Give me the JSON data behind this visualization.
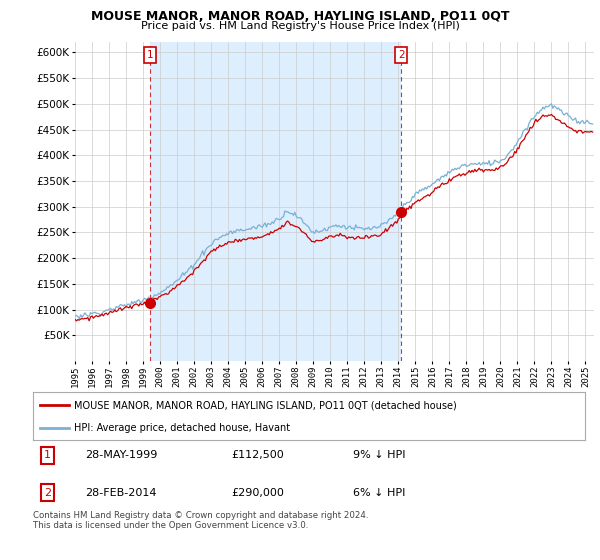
{
  "title": "MOUSE MANOR, MANOR ROAD, HAYLING ISLAND, PO11 0QT",
  "subtitle": "Price paid vs. HM Land Registry's House Price Index (HPI)",
  "legend_label_red": "MOUSE MANOR, MANOR ROAD, HAYLING ISLAND, PO11 0QT (detached house)",
  "legend_label_blue": "HPI: Average price, detached house, Havant",
  "sale1_date": "28-MAY-1999",
  "sale1_price": "£112,500",
  "sale1_hpi": "9% ↓ HPI",
  "sale2_date": "28-FEB-2014",
  "sale2_price": "£290,000",
  "sale2_hpi": "6% ↓ HPI",
  "footer": "Contains HM Land Registry data © Crown copyright and database right 2024.\nThis data is licensed under the Open Government Licence v3.0.",
  "ylim": [
    0,
    620000
  ],
  "ytick_values": [
    50000,
    100000,
    150000,
    200000,
    250000,
    300000,
    350000,
    400000,
    450000,
    500000,
    550000,
    600000
  ],
  "ytick_labels": [
    "£50K",
    "£100K",
    "£150K",
    "£200K",
    "£250K",
    "£300K",
    "£350K",
    "£400K",
    "£450K",
    "£500K",
    "£550K",
    "£600K"
  ],
  "red_color": "#cc0000",
  "blue_color": "#7ab0d4",
  "shade_color": "#ddeeff",
  "sale1_year": 1999.4,
  "sale1_value": 112500,
  "sale2_year": 2014.17,
  "sale2_value": 290000,
  "xlim_start": 1995.0,
  "xlim_end": 2025.5,
  "background_color": "#ffffff",
  "grid_color": "#cccccc",
  "title_fontsize": 9,
  "subtitle_fontsize": 8
}
